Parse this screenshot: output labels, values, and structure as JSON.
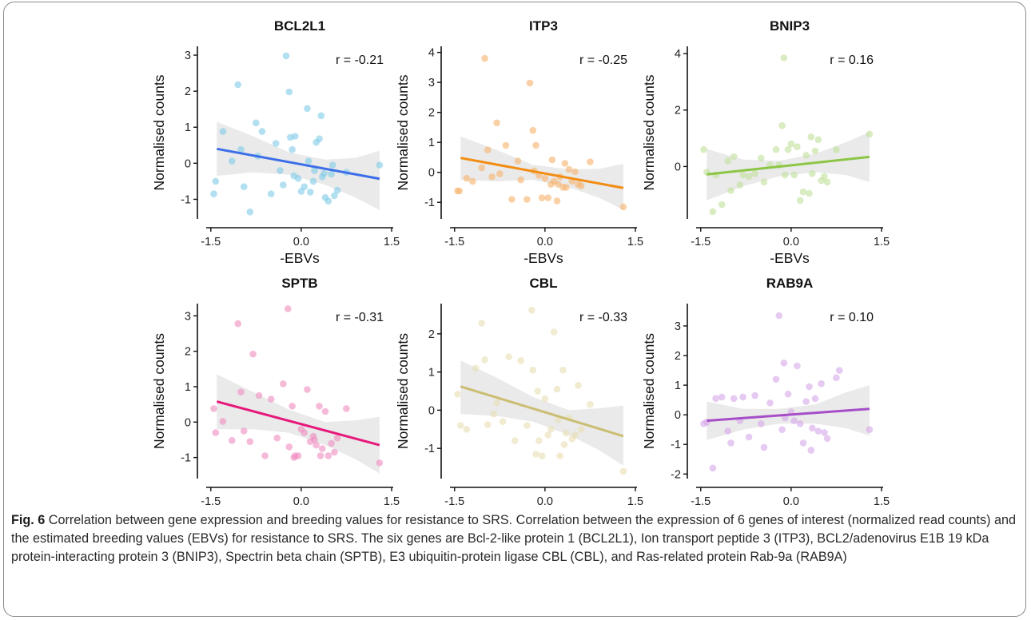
{
  "figure": {
    "caption_label": "Fig. 6",
    "caption_text": " Correlation between gene expression and breeding values for resistance to SRS. Correlation between the expression of 6 genes of interest (normalized read counts) and the estimated breeding values (EBVs) for resistance to SRS. The six genes are Bcl-2-like protein 1 (BCL2L1), Ion transport peptide 3 (ITP3), BCL2/adenovirus E1B 19 kDa protein-interacting protein 3 (BNIP3), Spectrin beta chain (SPTB), E3 ubiquitin-protein ligase CBL (CBL), and Ras-related protein Rab-9a (RAB9A)"
  },
  "chart_data": [
    {
      "type": "scatter",
      "title": "BCL2L1",
      "xlabel": "-EBVs",
      "ylabel": "Normalised counts",
      "annotation": "r = -0.21",
      "color": "#3c6ee8",
      "point_color": "#7fcbe8",
      "xlim": [
        -1.55,
        1.5
      ],
      "ylim": [
        -1.5,
        3.2
      ],
      "xticks": [
        -1.5,
        0.0,
        1.5
      ],
      "xtick_labels": [
        "-1.5",
        "0.0",
        "1.5"
      ],
      "yticks": [
        -1,
        0,
        1,
        2,
        3
      ],
      "ytick_labels": [
        "-1",
        "0",
        "1",
        "2",
        "3"
      ],
      "fit": {
        "x": [
          -1.4,
          1.3
        ],
        "y": [
          0.4,
          -0.43
        ]
      },
      "band": {
        "x": [
          -1.4,
          -0.8,
          -0.2,
          0.4,
          0.9,
          1.3
        ],
        "lower": [
          -0.35,
          -0.25,
          -0.32,
          -0.6,
          -0.95,
          -1.3
        ],
        "upper": [
          1.15,
          0.75,
          0.3,
          0.1,
          0.15,
          0.35
        ]
      },
      "points": {
        "x": [
          -1.42,
          -1.45,
          -1.3,
          -1.15,
          -1.05,
          -1.0,
          -0.95,
          -0.85,
          -0.75,
          -0.72,
          -0.65,
          -0.5,
          -0.42,
          -0.35,
          -0.3,
          -0.25,
          -0.2,
          -0.18,
          -0.15,
          -0.12,
          -0.1,
          -0.05,
          0.0,
          0.05,
          0.1,
          0.12,
          0.15,
          0.2,
          0.22,
          0.25,
          0.3,
          0.33,
          0.35,
          0.38,
          0.4,
          0.45,
          0.5,
          0.52,
          0.55,
          0.6,
          0.75,
          1.3
        ],
        "y": [
          -0.5,
          -0.85,
          0.88,
          0.06,
          2.18,
          0.38,
          -0.65,
          -1.35,
          1.12,
          0.2,
          0.88,
          -0.85,
          0.55,
          -0.2,
          -0.6,
          2.98,
          1.98,
          0.72,
          0.38,
          -0.35,
          0.75,
          -0.42,
          -0.78,
          -0.65,
          1.52,
          0.06,
          -0.8,
          -0.5,
          -0.2,
          0.58,
          0.68,
          1.32,
          -0.38,
          -0.28,
          -0.95,
          -1.05,
          -0.3,
          -0.05,
          -0.9,
          -0.75,
          -0.25,
          -0.05
        ]
      }
    },
    {
      "type": "scatter",
      "title": "ITP3",
      "xlabel": "-EBVs",
      "ylabel": "Normalised counts",
      "annotation": "r = -0.25",
      "color": "#f28c12",
      "point_color": "#f6b36a",
      "xlim": [
        -1.55,
        1.5
      ],
      "ylim": [
        -1.5,
        4.15
      ],
      "xticks": [
        -1.5,
        0.0,
        1.5
      ],
      "xtick_labels": [
        "-1.5",
        "0.0",
        "1.5"
      ],
      "yticks": [
        -1,
        0,
        1,
        2,
        3,
        4
      ],
      "ytick_labels": [
        "-1",
        "0",
        "1",
        "2",
        "3",
        "4"
      ],
      "fit": {
        "x": [
          -1.4,
          1.3
        ],
        "y": [
          0.48,
          -0.52
        ]
      },
      "band": {
        "x": [
          -1.4,
          -0.8,
          -0.2,
          0.4,
          0.9,
          1.3
        ],
        "lower": [
          -0.25,
          -0.3,
          -0.25,
          -0.5,
          -0.85,
          -1.25
        ],
        "upper": [
          1.2,
          0.75,
          0.25,
          0.1,
          0.12,
          0.28
        ]
      },
      "points": {
        "x": [
          -1.45,
          -1.42,
          -1.3,
          -1.2,
          -1.05,
          -1.0,
          -0.95,
          -0.88,
          -0.8,
          -0.75,
          -0.65,
          -0.55,
          -0.45,
          -0.4,
          -0.3,
          -0.25,
          -0.2,
          -0.18,
          -0.15,
          -0.1,
          -0.05,
          0.0,
          0.05,
          0.1,
          0.12,
          0.15,
          0.2,
          0.22,
          0.25,
          0.3,
          0.33,
          0.35,
          0.4,
          0.45,
          0.5,
          0.55,
          0.6,
          0.75,
          1.3
        ],
        "y": [
          -0.62,
          -0.62,
          -0.2,
          -0.3,
          0.15,
          3.8,
          0.75,
          -0.15,
          1.65,
          -0.05,
          0.9,
          -0.9,
          0.38,
          -0.25,
          -0.9,
          2.98,
          1.4,
          0.05,
          0.9,
          -0.1,
          -0.85,
          -0.2,
          -0.85,
          -0.4,
          0.42,
          -0.3,
          -0.95,
          -0.4,
          -0.15,
          -0.5,
          0.3,
          -0.5,
          0.1,
          -0.3,
          0.02,
          -0.4,
          -0.45,
          0.35,
          -1.15
        ]
      }
    },
    {
      "type": "scatter",
      "title": "BNIP3",
      "xlabel": "-EBVs",
      "ylabel": "Normalised counts",
      "annotation": "r = 0.16",
      "color": "#8cc646",
      "point_color": "#bfe09a",
      "xlim": [
        -1.55,
        1.5
      ],
      "ylim": [
        -1.8,
        4.2
      ],
      "xticks": [
        -1.5,
        0.0,
        1.5
      ],
      "xtick_labels": [
        "-1.5",
        "0.0",
        "1.5"
      ],
      "yticks": [
        0,
        2,
        4
      ],
      "ytick_labels": [
        "0",
        "2",
        "4"
      ],
      "fit": {
        "x": [
          -1.4,
          1.3
        ],
        "y": [
          -0.28,
          0.34
        ]
      },
      "band": {
        "x": [
          -1.4,
          -0.8,
          -0.2,
          0.4,
          0.9,
          1.3
        ],
        "lower": [
          -1.2,
          -0.7,
          -0.35,
          -0.2,
          -0.3,
          -0.55
        ],
        "upper": [
          0.62,
          0.25,
          0.2,
          0.45,
          0.85,
          1.22
        ]
      },
      "points": {
        "x": [
          -1.45,
          -1.4,
          -1.3,
          -1.25,
          -1.15,
          -1.05,
          -1.0,
          -0.95,
          -0.85,
          -0.8,
          -0.7,
          -0.6,
          -0.5,
          -0.45,
          -0.35,
          -0.25,
          -0.2,
          -0.15,
          -0.12,
          -0.1,
          -0.05,
          0.0,
          0.05,
          0.1,
          0.15,
          0.2,
          0.25,
          0.3,
          0.33,
          0.35,
          0.4,
          0.45,
          0.5,
          0.55,
          0.6,
          0.75,
          1.3
        ],
        "y": [
          0.6,
          -0.2,
          -1.6,
          -0.3,
          -1.35,
          0.2,
          -0.85,
          0.35,
          -0.65,
          -0.3,
          -0.35,
          -0.25,
          0.3,
          -0.55,
          0.05,
          0.6,
          0.05,
          1.45,
          3.85,
          -0.3,
          0.6,
          0.8,
          -0.3,
          0.7,
          -1.2,
          -0.9,
          0.4,
          -0.95,
          1.05,
          -0.25,
          0.55,
          0.95,
          -0.5,
          -0.35,
          -0.55,
          0.6,
          1.15
        ]
      }
    },
    {
      "type": "scatter",
      "title": "SPTB",
      "xlabel": "-EBVs",
      "ylabel": "Normalised counts",
      "annotation": "r = -0.31",
      "color": "#e6197b",
      "point_color": "#f08cbf",
      "xlim": [
        -1.55,
        1.5
      ],
      "ylim": [
        -1.55,
        3.3
      ],
      "xticks": [
        -1.5,
        0.0,
        1.5
      ],
      "xtick_labels": [
        "-1.5",
        "0.0",
        "1.5"
      ],
      "yticks": [
        -1,
        0,
        1,
        2,
        3
      ],
      "ytick_labels": [
        "-1",
        "0",
        "1",
        "2",
        "3"
      ],
      "fit": {
        "x": [
          -1.4,
          1.3
        ],
        "y": [
          0.58,
          -0.65
        ]
      },
      "band": {
        "x": [
          -1.4,
          -0.8,
          -0.2,
          0.4,
          0.9,
          1.3
        ],
        "lower": [
          -0.2,
          -0.2,
          -0.3,
          -0.65,
          -1.05,
          -1.45
        ],
        "upper": [
          1.35,
          0.85,
          0.35,
          0.0,
          0.05,
          0.15
        ]
      },
      "points": {
        "x": [
          -1.45,
          -1.42,
          -1.3,
          -1.15,
          -1.05,
          -1.0,
          -0.95,
          -0.85,
          -0.8,
          -0.7,
          -0.6,
          -0.5,
          -0.4,
          -0.3,
          -0.22,
          -0.2,
          -0.15,
          -0.12,
          -0.1,
          -0.05,
          0.0,
          0.05,
          0.1,
          0.15,
          0.2,
          0.22,
          0.25,
          0.3,
          0.32,
          0.35,
          0.4,
          0.45,
          0.5,
          0.55,
          0.6,
          0.75,
          1.3
        ],
        "y": [
          0.38,
          -0.3,
          0.02,
          -0.52,
          2.78,
          0.85,
          -0.25,
          -0.55,
          1.92,
          0.75,
          -0.95,
          0.65,
          -0.45,
          1.08,
          3.2,
          -0.7,
          0.45,
          -1.0,
          -0.95,
          -0.95,
          -0.2,
          -0.3,
          0.92,
          -0.55,
          -0.4,
          -0.5,
          -0.65,
          0.45,
          -0.95,
          -0.75,
          0.3,
          -0.95,
          -0.6,
          -0.85,
          -0.45,
          0.38,
          -1.15
        ]
      }
    },
    {
      "type": "scatter",
      "title": "CBL",
      "xlabel": "-EBVs",
      "ylabel": "Normalised counts",
      "annotation": "r = -0.33",
      "color": "#cbbd72",
      "point_color": "#e8deb3",
      "xlim": [
        -1.55,
        1.5
      ],
      "ylim": [
        -1.75,
        2.75
      ],
      "xticks": [
        -1.5,
        0.0,
        1.5
      ],
      "xtick_labels": [
        "-1.5",
        "0.0",
        "1.5"
      ],
      "yticks": [
        -1,
        0,
        1,
        2
      ],
      "ytick_labels": [
        "-1",
        "0",
        "1",
        "2"
      ],
      "fit": {
        "x": [
          -1.4,
          1.3
        ],
        "y": [
          0.62,
          -0.68
        ]
      },
      "band": {
        "x": [
          -1.4,
          -0.8,
          -0.2,
          0.4,
          0.9,
          1.3
        ],
        "lower": [
          -0.1,
          -0.15,
          -0.3,
          -0.65,
          -1.05,
          -1.45
        ],
        "upper": [
          1.3,
          0.85,
          0.35,
          0.0,
          0.05,
          0.12
        ]
      },
      "points": {
        "x": [
          -1.45,
          -1.4,
          -1.3,
          -1.15,
          -1.05,
          -1.0,
          -0.95,
          -0.85,
          -0.8,
          -0.7,
          -0.6,
          -0.5,
          -0.4,
          -0.3,
          -0.22,
          -0.2,
          -0.15,
          -0.12,
          -0.1,
          -0.05,
          0.0,
          0.05,
          0.1,
          0.15,
          0.2,
          0.22,
          0.25,
          0.3,
          0.32,
          0.35,
          0.4,
          0.45,
          0.5,
          0.55,
          0.6,
          0.75,
          1.3
        ],
        "y": [
          0.42,
          -0.4,
          -0.5,
          1.1,
          2.28,
          1.32,
          -0.38,
          -0.1,
          0.2,
          -0.3,
          1.4,
          -0.8,
          1.3,
          -0.4,
          2.62,
          1.05,
          -1.15,
          0.5,
          -0.8,
          -1.2,
          0.3,
          -0.65,
          -0.5,
          2.05,
          0.55,
          -0.25,
          -1.2,
          1.05,
          -0.9,
          -0.6,
          -0.2,
          -0.75,
          -0.65,
          0.65,
          -0.5,
          0.15,
          -1.6
        ]
      }
    },
    {
      "type": "scatter",
      "title": "RAB9A",
      "xlabel": "-EBVs",
      "ylabel": "Normalised counts",
      "annotation": "r = 0.10",
      "color": "#a64ec8",
      "point_color": "#d6a6ea",
      "xlim": [
        -1.55,
        1.5
      ],
      "ylim": [
        -2.1,
        3.7
      ],
      "xticks": [
        -1.5,
        0.0,
        1.5
      ],
      "xtick_labels": [
        "-1.5",
        "0.0",
        "1.5"
      ],
      "yticks": [
        -2,
        -1,
        0,
        1,
        2,
        3
      ],
      "ytick_labels": [
        "-2",
        "-1",
        "0",
        "1",
        "2",
        "3"
      ],
      "fit": {
        "x": [
          -1.4,
          1.3
        ],
        "y": [
          -0.2,
          0.2
        ]
      },
      "band": {
        "x": [
          -1.4,
          -0.8,
          -0.2,
          0.4,
          0.9,
          1.3
        ],
        "lower": [
          -0.85,
          -0.5,
          -0.3,
          -0.3,
          -0.45,
          -0.7
        ],
        "upper": [
          0.45,
          0.2,
          0.2,
          0.35,
          0.75,
          1.0
        ]
      },
      "points": {
        "x": [
          -1.45,
          -1.4,
          -1.3,
          -1.25,
          -1.15,
          -1.05,
          -1.0,
          -0.95,
          -0.85,
          -0.8,
          -0.7,
          -0.6,
          -0.5,
          -0.45,
          -0.35,
          -0.25,
          -0.2,
          -0.15,
          -0.12,
          -0.1,
          -0.05,
          0.0,
          0.05,
          0.1,
          0.15,
          0.2,
          0.25,
          0.3,
          0.33,
          0.35,
          0.4,
          0.45,
          0.5,
          0.55,
          0.6,
          0.75,
          0.8,
          1.3
        ],
        "y": [
          -0.3,
          -0.25,
          -1.8,
          0.55,
          0.6,
          -0.55,
          -0.95,
          0.55,
          -0.2,
          0.6,
          -0.75,
          0.65,
          -0.3,
          -1.1,
          0.4,
          1.2,
          3.35,
          -0.5,
          1.75,
          -0.1,
          0.7,
          0.1,
          -0.2,
          1.65,
          -0.3,
          -0.95,
          0.45,
          0.95,
          -1.2,
          -0.45,
          0.55,
          -0.55,
          1.05,
          -0.6,
          -0.8,
          1.25,
          1.5,
          -0.5
        ]
      }
    }
  ]
}
